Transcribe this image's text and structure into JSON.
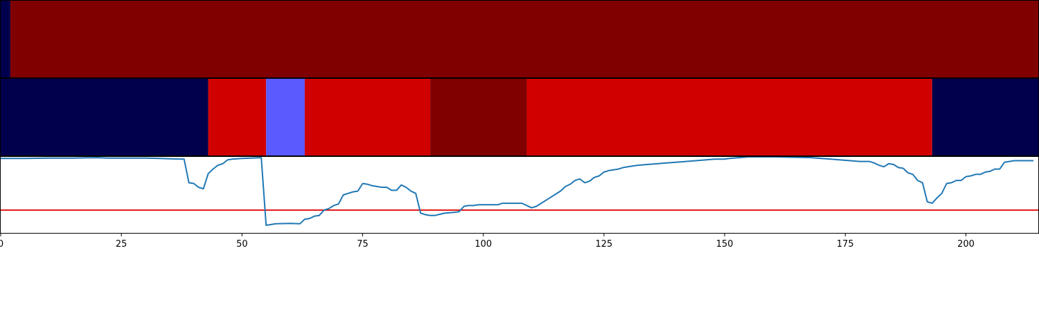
{
  "chart_data": [
    {
      "type": "heatmap",
      "segments": [
        {
          "start": 0,
          "end": 2,
          "color": "#00004c"
        },
        {
          "start": 2,
          "end": 215,
          "color": "#800000"
        }
      ]
    },
    {
      "type": "heatmap",
      "segments": [
        {
          "start": 0,
          "end": 43,
          "color": "#00004c"
        },
        {
          "start": 43,
          "end": 55,
          "color": "#d10000"
        },
        {
          "start": 55,
          "end": 63,
          "color": "#5a5aff"
        },
        {
          "start": 63,
          "end": 89,
          "color": "#d10000"
        },
        {
          "start": 89,
          "end": 109,
          "color": "#800000"
        },
        {
          "start": 109,
          "end": 193,
          "color": "#d10000"
        },
        {
          "start": 193,
          "end": 215,
          "color": "#00004c"
        }
      ]
    },
    {
      "type": "line",
      "xlim": [
        0,
        215
      ],
      "ylim": [
        0,
        1
      ],
      "xticks": [
        0,
        25,
        50,
        75,
        100,
        125,
        150,
        175,
        200
      ],
      "threshold": 0.3,
      "threshold_color": "#e31a1c",
      "series": [
        {
          "color": "#1f77b4",
          "x": [
            0,
            5,
            10,
            15,
            20,
            22,
            25,
            30,
            33,
            35,
            38,
            39,
            40,
            41,
            42,
            43,
            44,
            45,
            46,
            47,
            48,
            49,
            50,
            52,
            54,
            55,
            57,
            60,
            62,
            63,
            64,
            65,
            66,
            67,
            68,
            69,
            70,
            71,
            72,
            73,
            74,
            75,
            76,
            77,
            78,
            79,
            80,
            81,
            82,
            83,
            84,
            85,
            86,
            87,
            88,
            89,
            90,
            92,
            94,
            95,
            96,
            97,
            98,
            99,
            100,
            101,
            102,
            103,
            104,
            105,
            106,
            107,
            108,
            109,
            110,
            111,
            112,
            113,
            114,
            115,
            116,
            117,
            118,
            119,
            120,
            121,
            122,
            123,
            124,
            125,
            126,
            127,
            128,
            129,
            130,
            132,
            134,
            136,
            138,
            140,
            142,
            144,
            146,
            148,
            150,
            151,
            155,
            160,
            165,
            168,
            170,
            172,
            174,
            176,
            178,
            180,
            181,
            182,
            183,
            184,
            185,
            186,
            187,
            188,
            189,
            190,
            191,
            192,
            193,
            194,
            195,
            196,
            197,
            198,
            199,
            200,
            201,
            202,
            203,
            204,
            205,
            206,
            207,
            208,
            209,
            210,
            212,
            214
          ],
          "y": [
            0.98,
            0.98,
            0.985,
            0.985,
            0.99,
            0.985,
            0.985,
            0.985,
            0.98,
            0.975,
            0.97,
            0.66,
            0.65,
            0.6,
            0.58,
            0.78,
            0.84,
            0.89,
            0.91,
            0.96,
            0.97,
            0.975,
            0.98,
            0.985,
            0.99,
            0.1,
            0.12,
            0.125,
            0.12,
            0.18,
            0.19,
            0.22,
            0.23,
            0.3,
            0.32,
            0.36,
            0.38,
            0.5,
            0.52,
            0.54,
            0.55,
            0.65,
            0.64,
            0.62,
            0.61,
            0.6,
            0.6,
            0.56,
            0.56,
            0.63,
            0.6,
            0.55,
            0.52,
            0.26,
            0.24,
            0.23,
            0.23,
            0.26,
            0.27,
            0.28,
            0.35,
            0.36,
            0.36,
            0.37,
            0.37,
            0.37,
            0.37,
            0.37,
            0.39,
            0.39,
            0.39,
            0.39,
            0.39,
            0.36,
            0.33,
            0.35,
            0.39,
            0.43,
            0.47,
            0.51,
            0.55,
            0.61,
            0.64,
            0.69,
            0.71,
            0.66,
            0.68,
            0.73,
            0.75,
            0.8,
            0.82,
            0.83,
            0.84,
            0.86,
            0.87,
            0.89,
            0.9,
            0.91,
            0.92,
            0.93,
            0.94,
            0.95,
            0.96,
            0.97,
            0.97,
            0.98,
            1.0,
            1.0,
            0.995,
            0.99,
            0.98,
            0.97,
            0.96,
            0.95,
            0.94,
            0.94,
            0.92,
            0.89,
            0.87,
            0.91,
            0.9,
            0.86,
            0.85,
            0.79,
            0.77,
            0.69,
            0.66,
            0.41,
            0.39,
            0.46,
            0.52,
            0.65,
            0.66,
            0.69,
            0.69,
            0.74,
            0.75,
            0.77,
            0.77,
            0.8,
            0.81,
            0.84,
            0.84,
            0.93,
            0.94,
            0.95,
            0.95,
            0.95
          ]
        }
      ]
    }
  ]
}
